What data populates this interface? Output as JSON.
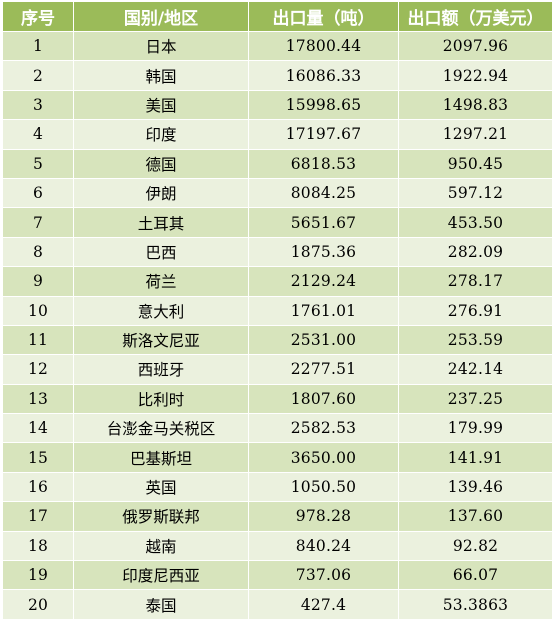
{
  "table": {
    "headers": [
      "序号",
      "国别/地区",
      "出口量（吨）",
      "出口额（万美元）"
    ],
    "rows": [
      [
        "1",
        "日本",
        "17800.44",
        "2097.96"
      ],
      [
        "2",
        "韩国",
        "16086.33",
        "1922.94"
      ],
      [
        "3",
        "美国",
        "15998.65",
        "1498.83"
      ],
      [
        "4",
        "印度",
        "17197.67",
        "1297.21"
      ],
      [
        "5",
        "德国",
        "6818.53",
        "950.45"
      ],
      [
        "6",
        "伊朗",
        "8084.25",
        "597.12"
      ],
      [
        "7",
        "土耳其",
        "5651.67",
        "453.50"
      ],
      [
        "8",
        "巴西",
        "1875.36",
        "282.09"
      ],
      [
        "9",
        "荷兰",
        "2129.24",
        "278.17"
      ],
      [
        "10",
        "意大利",
        "1761.01",
        "276.91"
      ],
      [
        "11",
        "斯洛文尼亚",
        "2531.00",
        "253.59"
      ],
      [
        "12",
        "西班牙",
        "2277.51",
        "242.14"
      ],
      [
        "13",
        "比利时",
        "1807.60",
        "237.25"
      ],
      [
        "14",
        "台澎金马关税区",
        "2582.53",
        "179.99"
      ],
      [
        "15",
        "巴基斯坦",
        "3650.00",
        "141.91"
      ],
      [
        "16",
        "英国",
        "1050.50",
        "139.46"
      ],
      [
        "17",
        "俄罗斯联邦",
        "978.28",
        "137.60"
      ],
      [
        "18",
        "越南",
        "840.24",
        "92.82"
      ],
      [
        "19",
        "印度尼西亚",
        "737.06",
        "66.07"
      ],
      [
        "20",
        "泰国",
        "427.4",
        "53.3863"
      ]
    ]
  },
  "colors": {
    "header_bg": "#9bbb59",
    "row_odd_bg": "#d7e4bc",
    "row_even_bg": "#ebf1de",
    "border": "#ffffff"
  }
}
